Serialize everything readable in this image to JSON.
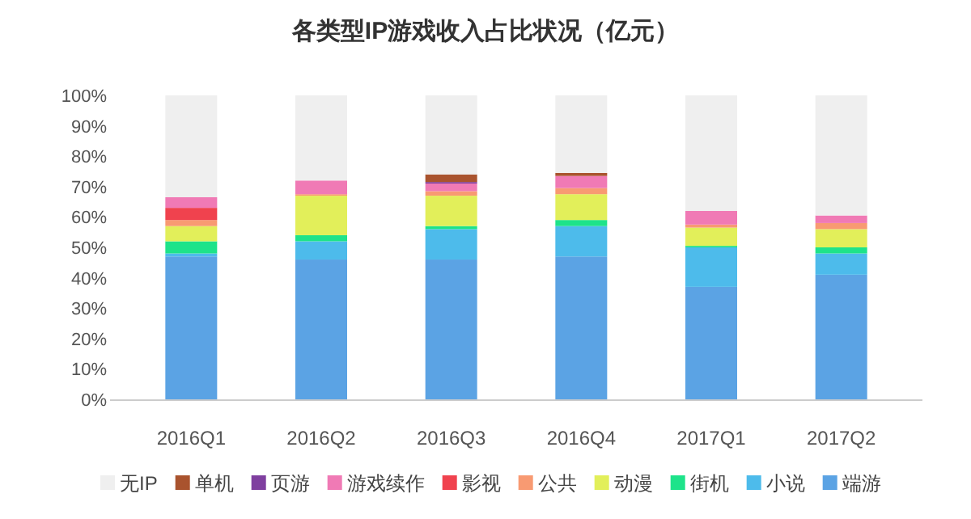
{
  "chart_data": {
    "type": "bar",
    "title": "各类型IP游戏收入占比状况（亿元）",
    "stacked": true,
    "categories": [
      "2016Q1",
      "2016Q2",
      "2016Q3",
      "2016Q4",
      "2017Q1",
      "2017Q2"
    ],
    "series": [
      {
        "name": "端游",
        "color": "#5ba3e4",
        "values": [
          47,
          46,
          46,
          47,
          37,
          41
        ]
      },
      {
        "name": "小说",
        "color": "#4dbbeb",
        "values": [
          1,
          6,
          10,
          10,
          13,
          7
        ]
      },
      {
        "name": "街机",
        "color": "#1ee38a",
        "values": [
          4,
          2,
          1,
          2,
          0.5,
          2
        ]
      },
      {
        "name": "动漫",
        "color": "#e2ef5a",
        "values": [
          5,
          13,
          10,
          8.5,
          6,
          6
        ]
      },
      {
        "name": "公共",
        "color": "#f89a72",
        "values": [
          2,
          0.5,
          1.5,
          2,
          1,
          2
        ]
      },
      {
        "name": "影视",
        "color": "#f0424e",
        "values": [
          4,
          0,
          0,
          0,
          0,
          0
        ]
      },
      {
        "name": "游戏续作",
        "color": "#f07ab5",
        "values": [
          3.5,
          4.5,
          2.5,
          4,
          4.5,
          2.5
        ]
      },
      {
        "name": "页游",
        "color": "#7f3f9f",
        "values": [
          0,
          0,
          0.5,
          0,
          0,
          0
        ]
      },
      {
        "name": "单机",
        "color": "#a9532e",
        "values": [
          0,
          0,
          2.5,
          1,
          0,
          0
        ]
      },
      {
        "name": "无IP",
        "color": "#efefef",
        "values": [
          33.5,
          28,
          26,
          25.5,
          38,
          39.5
        ]
      }
    ],
    "ylim": [
      0,
      100
    ],
    "yticks": [
      {
        "value": 0,
        "label": "0%"
      },
      {
        "value": 10,
        "label": "10%"
      },
      {
        "value": 20,
        "label": "20%"
      },
      {
        "value": 30,
        "label": "30%"
      },
      {
        "value": 40,
        "label": "40%"
      },
      {
        "value": 50,
        "label": "50%"
      },
      {
        "value": 60,
        "label": "60%"
      },
      {
        "value": 70,
        "label": "70%"
      },
      {
        "value": 80,
        "label": "80%"
      },
      {
        "value": 90,
        "label": "90%"
      },
      {
        "value": 100,
        "label": "100%"
      }
    ],
    "legend": "bottom"
  }
}
